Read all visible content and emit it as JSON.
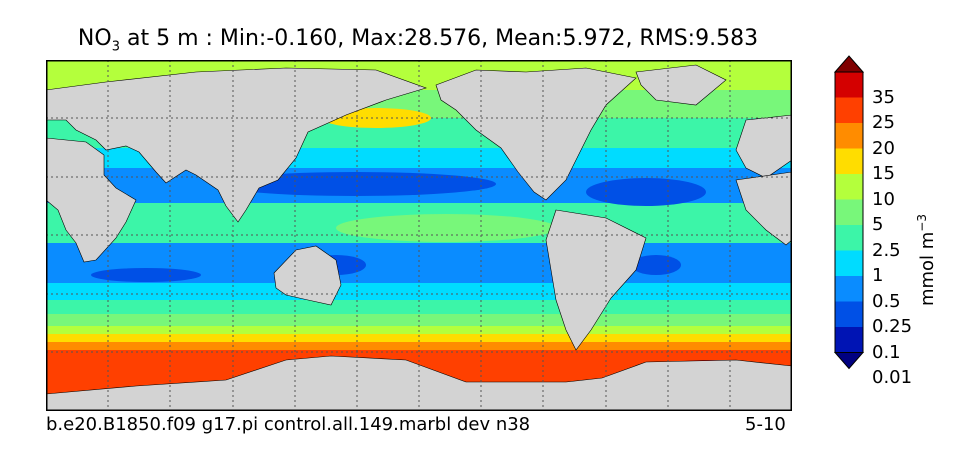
{
  "title": {
    "variable": "NO",
    "subscript": "3",
    "rest": " at 5 m : Min:-0.160, Max:28.576, Mean:5.972, RMS:9.583"
  },
  "colorbar": {
    "labels": [
      "35",
      "25",
      "20",
      "15",
      "10",
      "5",
      "2.5",
      "1",
      "0.5",
      "0.25",
      "0.1",
      "0.01"
    ],
    "colors": [
      "#7f0000",
      "#d40000",
      "#ff4000",
      "#ff8c00",
      "#ffdd00",
      "#b4ff3c",
      "#78f77a",
      "#3cf5a8",
      "#00dcff",
      "#0a8cff",
      "#0050e6",
      "#0014b4",
      "#000080"
    ],
    "units": "mmol m",
    "units_exponent": "−3"
  },
  "footer": {
    "run_name": "b.e20.B1850.f09 g17.pi control.all.149.marbl dev n38",
    "years": "5-10"
  },
  "colors": {
    "land": "#d3d3d3",
    "grid": "#555555"
  }
}
